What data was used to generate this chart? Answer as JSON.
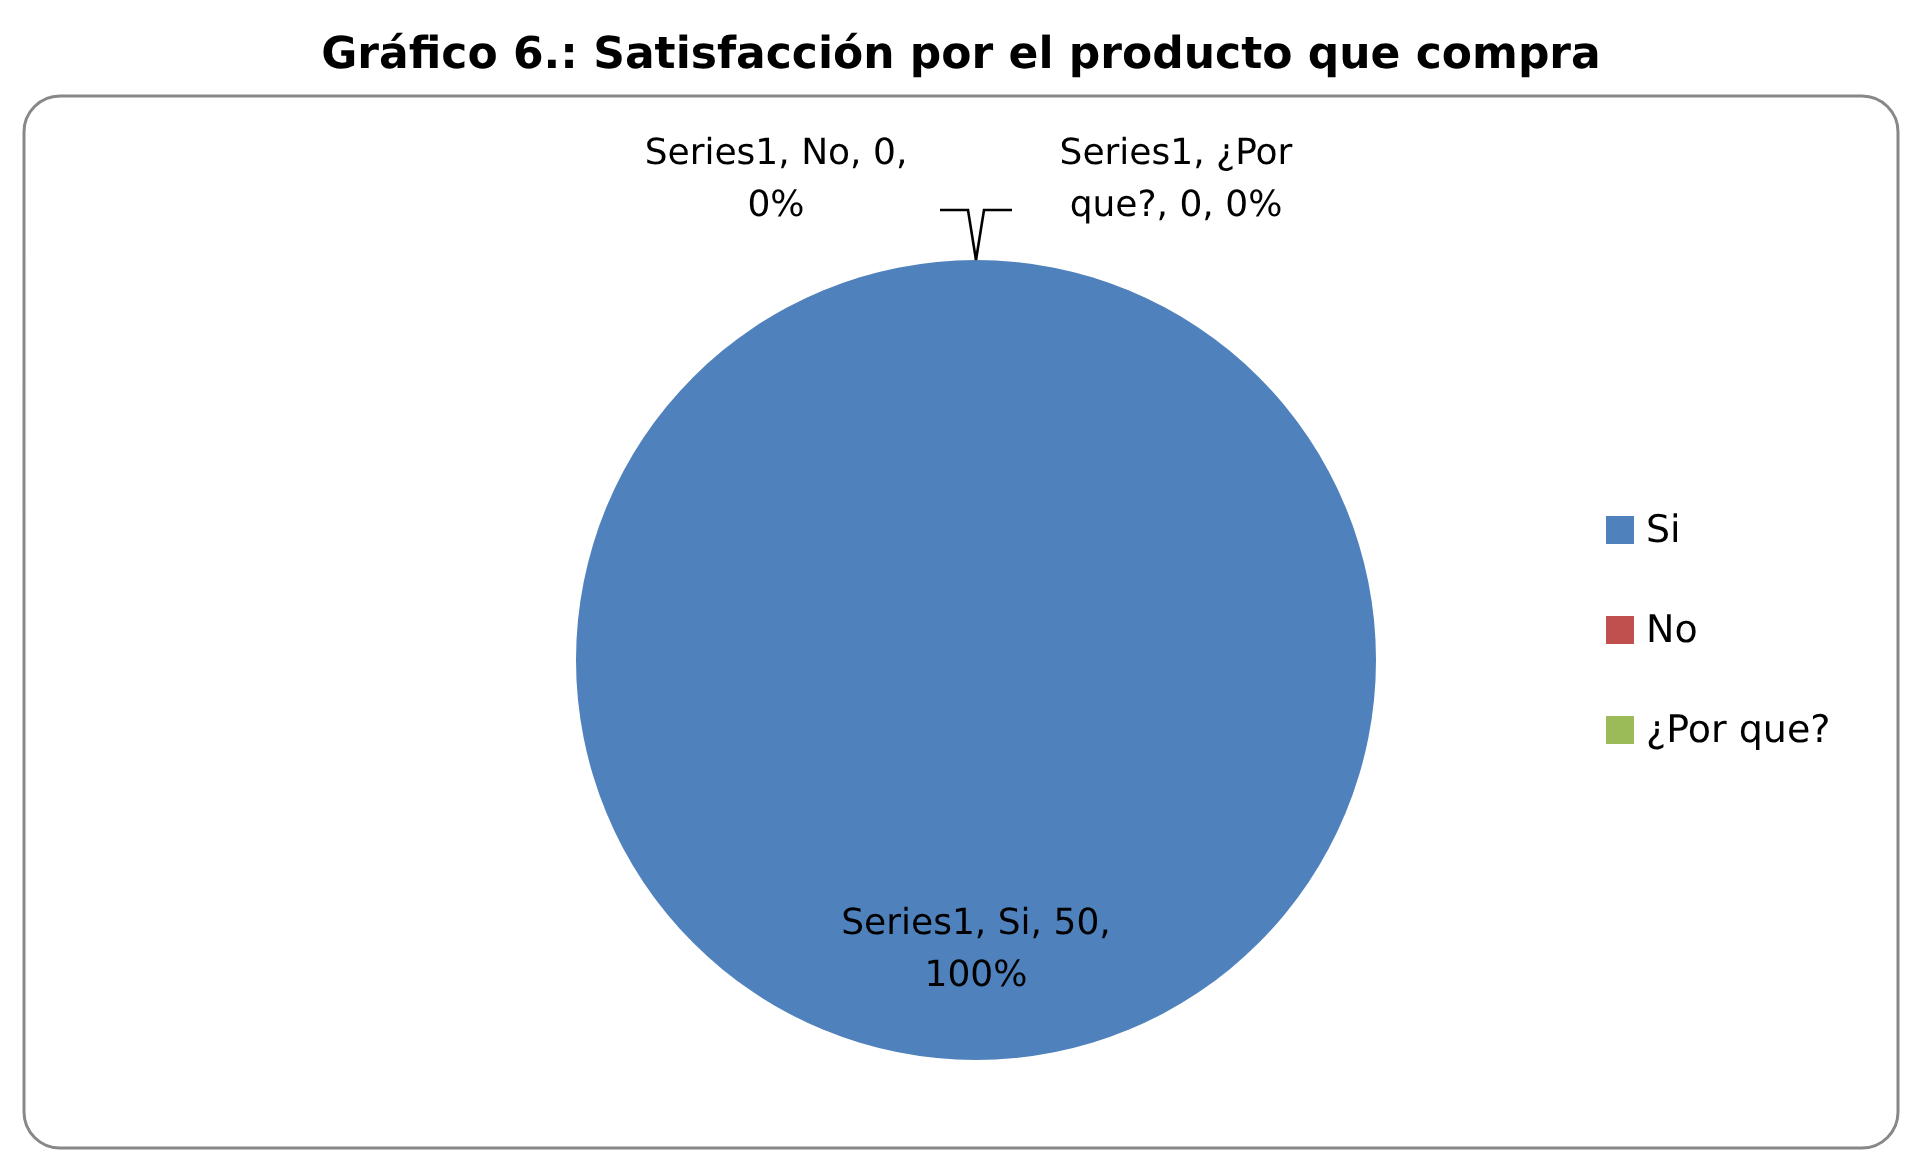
{
  "chart_data": {
    "type": "pie",
    "title": "Gráfico 6.: Satisfacción por el producto que compra",
    "categories": [
      "Si",
      "No",
      "¿Por que?"
    ],
    "values": [
      50,
      0,
      0
    ],
    "colors": [
      "#4f81bd",
      "#c0504d",
      "#9bbb59"
    ],
    "value_labels": [
      "Series1, Si, 50, 100%",
      "Series1, No, 0, 0%",
      "Series1, ¿Por que?, 0, 0%"
    ],
    "legend": "right"
  }
}
